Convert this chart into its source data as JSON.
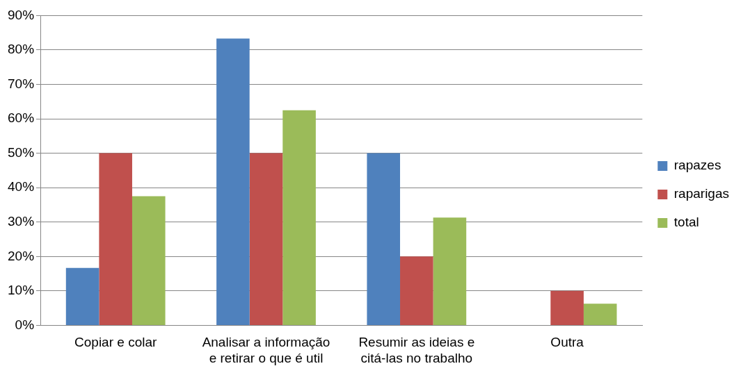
{
  "chart_data": {
    "type": "bar",
    "categories": [
      "Copiar e colar",
      "Analisar a informação e retirar o que é util",
      "Resumir as ideias e citá-las no trabalho",
      "Outra"
    ],
    "series": [
      {
        "name": "rapazes",
        "color": "#4f81bd",
        "values": [
          16.7,
          83.3,
          50,
          0
        ]
      },
      {
        "name": "raparigas",
        "color": "#c0504d",
        "values": [
          50,
          50,
          20,
          10
        ]
      },
      {
        "name": "total",
        "color": "#9bbb59",
        "values": [
          37.5,
          62.5,
          31.3,
          6.3
        ]
      }
    ],
    "ylim": [
      0,
      90
    ],
    "yticks": [
      {
        "value": 0,
        "label": "0%"
      },
      {
        "value": 10,
        "label": "10%"
      },
      {
        "value": 20,
        "label": "20%"
      },
      {
        "value": 30,
        "label": "30%"
      },
      {
        "value": 40,
        "label": "40%"
      },
      {
        "value": 50,
        "label": "50%"
      },
      {
        "value": 60,
        "label": "60%"
      },
      {
        "value": 70,
        "label": "70%"
      },
      {
        "value": 80,
        "label": "80%"
      },
      {
        "value": 90,
        "label": "90%"
      }
    ],
    "grid": "y",
    "legend": "right"
  }
}
